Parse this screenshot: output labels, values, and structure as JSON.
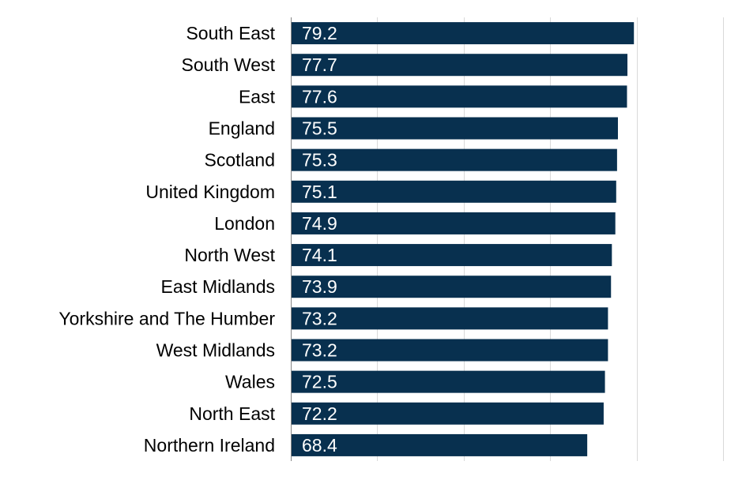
{
  "chart_data": {
    "type": "bar",
    "orientation": "horizontal",
    "categories": [
      "South East",
      "South West",
      "East",
      "England",
      "Scotland",
      "United Kingdom",
      "London",
      "North West",
      "East Midlands",
      "Yorkshire and The Humber",
      "West Midlands",
      "Wales",
      "North East",
      "Northern Ireland"
    ],
    "values": [
      79.2,
      77.7,
      77.6,
      75.5,
      75.3,
      75.1,
      74.9,
      74.1,
      73.9,
      73.2,
      73.2,
      72.5,
      72.2,
      68.4
    ],
    "value_labels": [
      "79.2",
      "77.7",
      "77.6",
      "75.5",
      "75.3",
      "75.1",
      "74.9",
      "74.1",
      "73.9",
      "73.2",
      "73.2",
      "72.5",
      "72.2",
      "68.4"
    ],
    "xlim": [
      0,
      100
    ],
    "grid": true,
    "legend": "none",
    "title": "",
    "xlabel": "",
    "ylabel": ""
  },
  "colors": {
    "bar": "#08304f",
    "gridline": "#d9d9d9",
    "axis": "#868686",
    "value_text": "#ffffff",
    "category_text": "#000000"
  }
}
